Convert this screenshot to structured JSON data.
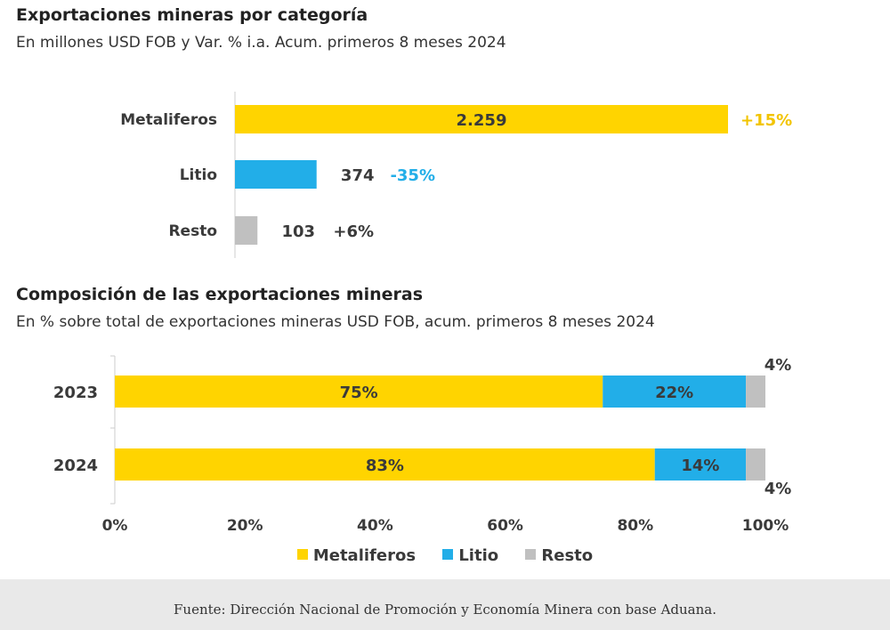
{
  "colors": {
    "metaliferos": "#ffd400",
    "litio": "#22aee8",
    "resto": "#c0c0c0",
    "metal_change": "#f2c400",
    "litio_change": "#22aee8",
    "resto_change": "#3a3a3a",
    "axis": "#cccccc"
  },
  "chart_data": [
    {
      "type": "bar",
      "orientation": "horizontal",
      "title": "Exportaciones mineras por categoría",
      "subtitle": "En millones USD FOB y Var. % i.a. Acum. primeros 8 meses 2024",
      "categories": [
        "Metaliferos",
        "Litio",
        "Resto"
      ],
      "values": [
        2259,
        374,
        103
      ],
      "value_labels": [
        "2.259",
        "374",
        "103"
      ],
      "changes": [
        "+15%",
        "-35%",
        "+6%"
      ],
      "xlim": [
        0,
        2500
      ]
    },
    {
      "type": "bar",
      "orientation": "horizontal",
      "stacked": true,
      "title": "Composición de las exportaciones mineras",
      "subtitle": "En % sobre total de exportaciones mineras USD FOB, acum. primeros 8 meses 2024",
      "categories": [
        "2023",
        "2024"
      ],
      "series": [
        {
          "name": "Metaliferos",
          "values": [
            75,
            83
          ],
          "labels": [
            "75%",
            "83%"
          ]
        },
        {
          "name": "Litio",
          "values": [
            22,
            14
          ],
          "labels": [
            "22%",
            "14%"
          ]
        },
        {
          "name": "Resto",
          "values": [
            4,
            4
          ],
          "labels": [
            "4%",
            "4%"
          ]
        }
      ],
      "x_ticks": [
        "0%",
        "20%",
        "40%",
        "60%",
        "80%",
        "100%"
      ],
      "xlim": [
        0,
        100
      ],
      "legend": "bottom"
    }
  ],
  "footer": "Fuente: Dirección Nacional de Promoción y Economía Minera con base Aduana."
}
